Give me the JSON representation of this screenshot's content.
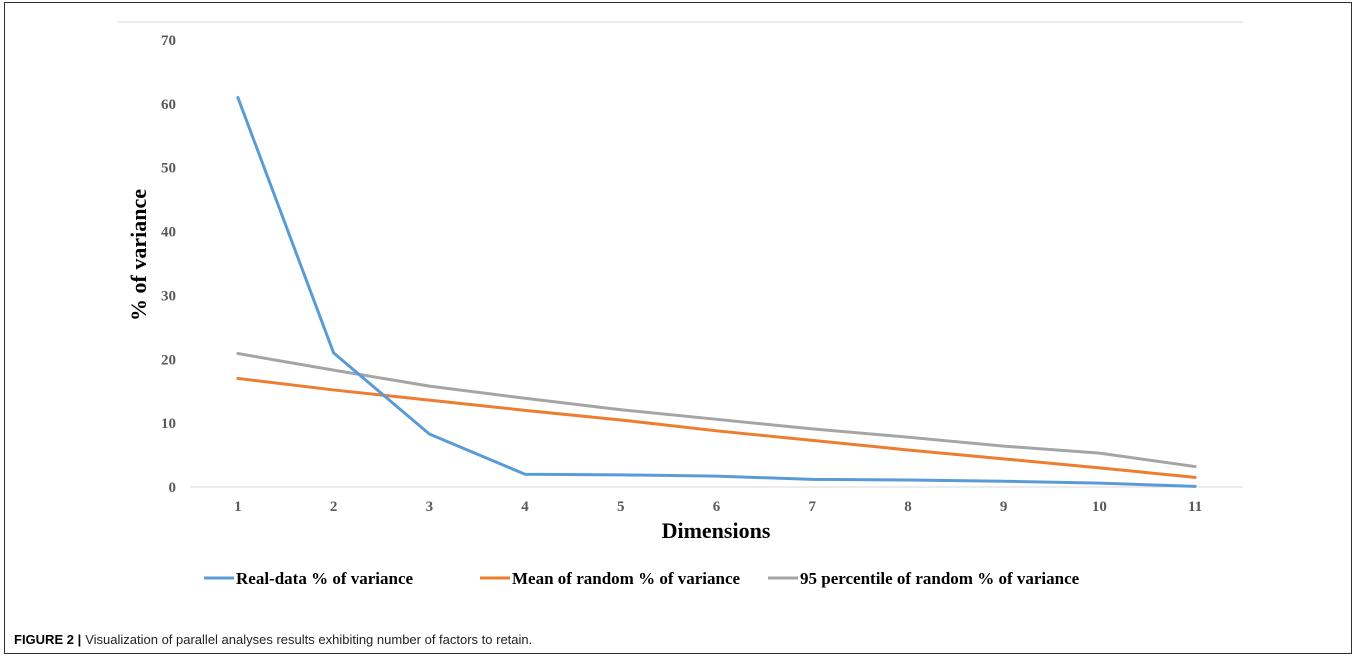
{
  "caption": {
    "label": "FIGURE 2 |",
    "text": "Visualization of parallel analyses results exhibiting number of factors to retain."
  },
  "chart_data": {
    "type": "line",
    "title": "",
    "xlabel": "Dimensions",
    "ylabel": "% of variance",
    "ylim": [
      0,
      70
    ],
    "yticks": [
      0,
      10,
      20,
      30,
      40,
      50,
      60,
      70
    ],
    "x": [
      1,
      2,
      3,
      4,
      5,
      6,
      7,
      8,
      9,
      10,
      11
    ],
    "grid": false,
    "legend_position": "bottom",
    "series": [
      {
        "name": "Real-data % of variance",
        "color": "#5b9bd5",
        "values": [
          61,
          21,
          8.3,
          2.0,
          1.9,
          1.7,
          1.2,
          1.1,
          0.9,
          0.6,
          0.1
        ]
      },
      {
        "name": "Mean of random % of variance",
        "color": "#ed7d31",
        "values": [
          17,
          15.2,
          13.6,
          12,
          10.5,
          8.8,
          7.3,
          5.8,
          4.4,
          3.0,
          1.5
        ]
      },
      {
        "name": "95 percentile of random % of variance",
        "color": "#a5a5a5",
        "values": [
          20.9,
          18.3,
          15.8,
          13.9,
          12.1,
          10.6,
          9.1,
          7.8,
          6.4,
          5.3,
          3.2
        ]
      }
    ]
  }
}
